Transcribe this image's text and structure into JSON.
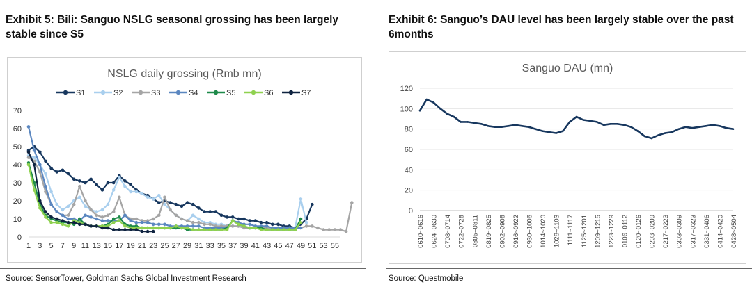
{
  "exhibits": [
    {
      "title": "Exhibit 5: Bili: Sanguo NSLG seasonal grossing has been largely stable since S5",
      "source": "Source: SensorTower, Goldman Sachs Global Investment Research"
    },
    {
      "title": "Exhibit 6: Sanguo’s DAU level has been largely stable over the past 6months",
      "source": "Source: Questmobile"
    }
  ],
  "chart_data": [
    {
      "type": "line",
      "title": "NSLG daily grossing (Rmb mn)",
      "xlabel": "",
      "ylabel": "",
      "ylim": [
        0,
        70
      ],
      "yticks": [
        0,
        10,
        20,
        30,
        40,
        50,
        60,
        70
      ],
      "xlim": [
        1,
        56
      ],
      "xtick_labels": [
        "1",
        "3",
        "5",
        "7",
        "9",
        "11",
        "13",
        "15",
        "17",
        "19",
        "21",
        "23",
        "25",
        "27",
        "29",
        "31",
        "33",
        "35",
        "37",
        "39",
        "41",
        "43",
        "45",
        "47",
        "49",
        "51",
        "53",
        "55"
      ],
      "legend_position": "top",
      "series": [
        {
          "name": "S1",
          "color": "#17375e",
          "start": 1,
          "values": [
            48,
            50,
            47,
            42,
            38,
            36,
            37,
            35,
            32,
            31,
            30,
            32,
            29,
            26,
            30,
            30,
            34,
            31,
            29,
            26,
            24,
            23,
            21,
            19,
            20,
            19,
            18,
            17,
            19,
            18,
            16,
            14,
            14,
            14,
            12,
            11,
            11,
            10,
            10,
            9,
            9,
            8,
            8,
            7,
            7,
            6,
            6,
            5,
            7,
            10,
            18
          ]
        },
        {
          "name": "S2",
          "color": "#a9cfee",
          "start": 1,
          "values": [
            45,
            44,
            40,
            35,
            25,
            18,
            15,
            17,
            20,
            22,
            17,
            15,
            14,
            15,
            18,
            26,
            33,
            28,
            25,
            25,
            24,
            22,
            21,
            23,
            18,
            15,
            12,
            10,
            9,
            12,
            10,
            8,
            8,
            7,
            7,
            6,
            6,
            6,
            5,
            5,
            5,
            5,
            5,
            5,
            5,
            5,
            5,
            5,
            21,
            8
          ]
        },
        {
          "name": "S3",
          "color": "#a5a5a5",
          "start": 1,
          "values": [
            44,
            42,
            36,
            25,
            18,
            14,
            12,
            12,
            18,
            28,
            20,
            15,
            12,
            11,
            12,
            14,
            22,
            12,
            10,
            10,
            9,
            9,
            10,
            12,
            22,
            15,
            12,
            10,
            9,
            8,
            8,
            7,
            7,
            6,
            6,
            6,
            6,
            6,
            5,
            5,
            5,
            5,
            5,
            5,
            5,
            5,
            5,
            5,
            5,
            6,
            6,
            5,
            4,
            4,
            4,
            4,
            3,
            19
          ]
        },
        {
          "name": "S4",
          "color": "#5b87c0",
          "start": 1,
          "values": [
            61,
            48,
            40,
            28,
            18,
            14,
            12,
            10,
            10,
            9,
            12,
            11,
            10,
            9,
            9,
            9,
            9,
            12,
            9,
            8,
            8,
            8,
            7,
            7,
            7,
            6,
            6,
            6,
            6,
            6,
            6,
            5,
            5,
            5,
            5,
            5,
            9,
            8,
            7,
            7,
            6,
            6,
            6,
            5,
            5,
            5,
            5,
            5,
            5
          ]
        },
        {
          "name": "S5",
          "color": "#1e8a4a",
          "start": 1,
          "values": [
            41,
            30,
            18,
            12,
            10,
            9,
            8,
            8,
            7,
            10,
            7,
            6,
            6,
            6,
            7,
            10,
            11,
            7,
            6,
            6,
            5,
            5,
            5,
            5,
            5,
            5,
            5,
            5,
            4,
            4,
            4,
            4,
            4,
            4,
            4,
            5,
            9,
            7,
            6,
            5,
            5,
            5,
            4,
            4,
            4,
            4,
            4,
            4,
            10
          ]
        },
        {
          "name": "S6",
          "color": "#8fd14f",
          "start": 1,
          "values": [
            40,
            26,
            16,
            11,
            8,
            8,
            7,
            6,
            9,
            8,
            7,
            6,
            6,
            6,
            6,
            8,
            9,
            6,
            5,
            5,
            5,
            5,
            5,
            5,
            5,
            5,
            6,
            5,
            5,
            4,
            4,
            4,
            4,
            4,
            4,
            4,
            9,
            7,
            6,
            5,
            5,
            4,
            4,
            4,
            4,
            4,
            4,
            4,
            8
          ]
        },
        {
          "name": "S7",
          "color": "#0f2340",
          "start": 1,
          "values": [
            47,
            40,
            20,
            14,
            11,
            10,
            9,
            8,
            8,
            7,
            7,
            6,
            6,
            5,
            5,
            4,
            4,
            4,
            4,
            4,
            3,
            3,
            3
          ]
        }
      ]
    },
    {
      "type": "line",
      "title": "Sanguo DAU (mn)",
      "xlabel": "",
      "ylabel": "",
      "ylim": [
        0,
        120
      ],
      "yticks": [
        0,
        20,
        40,
        60,
        80,
        100,
        120
      ],
      "categories": [
        "0610~0616",
        "0617~0623",
        "0624~0630",
        "0701~0707",
        "0708~0714",
        "0715~0721",
        "0722~0728",
        "0729~0804",
        "0805~0811",
        "0812~0818",
        "0819~0825",
        "0826~0901",
        "0902~0908",
        "0909~0915",
        "0916~0922",
        "0923~0929",
        "0930~1006",
        "1007~1013",
        "1014~1020",
        "1021~1027",
        "1028~1103",
        "1104~1110",
        "1111~1117",
        "1118~1124",
        "1125~1201",
        "1202~1208",
        "1209~1215",
        "1216~1222",
        "1223~1229",
        "1230~0105",
        "0106~0112",
        "0113~0119",
        "0120~0126",
        "0127~0202",
        "0203~0209",
        "0210~0216",
        "0217~0223",
        "0224~0302",
        "0303~0309",
        "0310~0316",
        "0317~0323",
        "0324~0330",
        "0331~0406",
        "0407~0413",
        "0414~0420",
        "0421~0427",
        "0428~0504"
      ],
      "shown_tick_labels": [
        "0610~0616",
        "0624~0630",
        "0708~0714",
        "0722~0728",
        "0805~0811",
        "0819~0825",
        "0902~0908",
        "0916~0922",
        "0930~1006",
        "1014~1020",
        "1028~1103",
        "1111~1117",
        "1125~1201",
        "1209~1215",
        "1223~1229",
        "0106~0112",
        "0120~0126",
        "0203~0209",
        "0217~0223",
        "0303~0309",
        "0317~0323",
        "0331~0406",
        "0414~0420",
        "0428~0504"
      ],
      "series": [
        {
          "name": "Sanguo DAU",
          "color": "#17375e",
          "values": [
            98,
            109,
            106,
            100,
            95,
            92,
            87,
            87,
            86,
            85,
            83,
            82,
            82,
            83,
            84,
            83,
            82,
            80,
            78,
            77,
            76,
            78,
            87,
            92,
            89,
            88,
            87,
            84,
            85,
            85,
            84,
            82,
            78,
            73,
            71,
            74,
            76,
            77,
            80,
            82,
            81,
            82,
            83,
            84,
            83,
            81,
            80
          ]
        }
      ]
    }
  ]
}
